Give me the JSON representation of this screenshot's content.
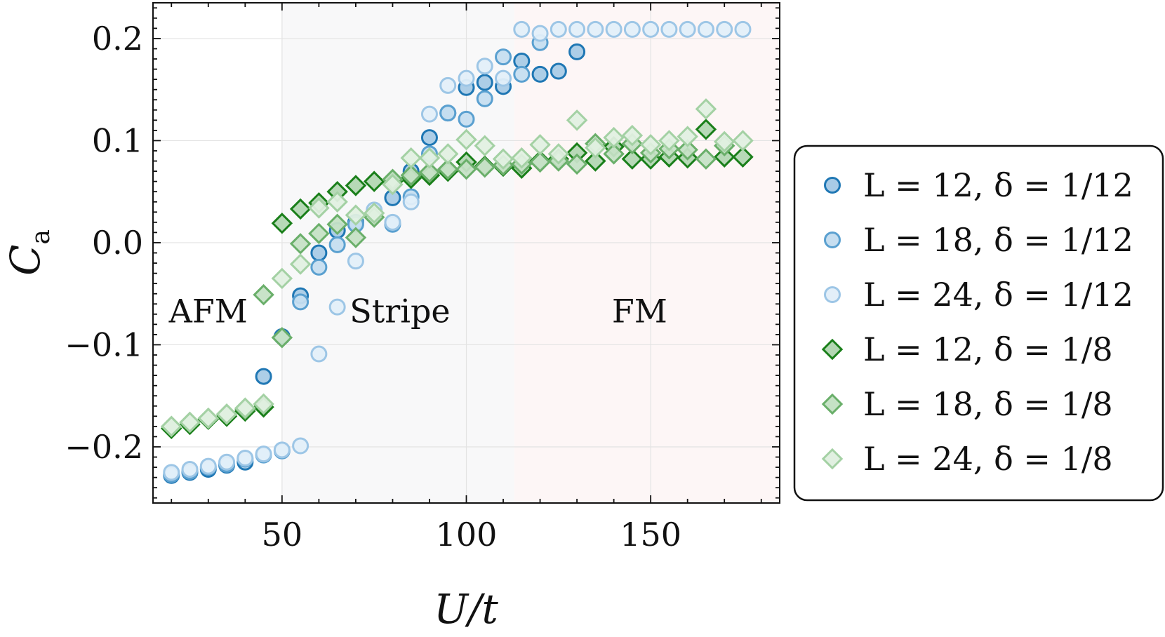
{
  "chart_data": {
    "type": "scatter",
    "title": "",
    "xlabel": "U/t",
    "ylabel": "C",
    "ylabel_subscript": "a",
    "xlim": [
      15,
      185
    ],
    "ylim": [
      -0.255,
      0.235
    ],
    "xticks": [
      50,
      100,
      150
    ],
    "xtick_labels": [
      "50",
      "100",
      "150"
    ],
    "yticks": [
      -0.2,
      -0.1,
      0.0,
      0.1,
      0.2
    ],
    "ytick_labels": [
      "−0.2",
      "−0.1",
      "0.0",
      "0.1",
      "0.2"
    ],
    "grid": true,
    "regions": [
      {
        "label": "AFM",
        "x0": 15,
        "x1": 50,
        "color": "#ffffff",
        "label_x": 30,
        "label_y": -0.078
      },
      {
        "label": "Stripe",
        "x0": 50,
        "x1": 113,
        "color": "#f8f8f9",
        "label_x": 82,
        "label_y": -0.078
      },
      {
        "label": "FM",
        "x0": 113,
        "x1": 185,
        "color": "#fdf6f6",
        "label_x": 147,
        "label_y": -0.078
      }
    ],
    "legend_position": "right, outside plot",
    "series": [
      {
        "name": "L = 12, δ = 1/12",
        "marker": "circle",
        "edge": "#1f77b4",
        "fill": "#a9cbe6",
        "x": [
          20,
          25,
          30,
          35,
          40,
          45,
          50,
          55,
          60,
          65,
          70,
          75,
          80,
          85,
          90,
          95,
          100,
          105,
          110,
          115,
          120,
          125,
          130
        ],
        "y": [
          -0.228,
          -0.225,
          -0.222,
          -0.218,
          -0.215,
          -0.131,
          -0.092,
          -0.052,
          -0.01,
          0.012,
          0.02,
          0.03,
          0.044,
          0.07,
          0.103,
          0.127,
          0.152,
          0.157,
          0.153,
          0.178,
          0.165,
          0.168,
          0.187
        ]
      },
      {
        "name": "L = 18, δ = 1/12",
        "marker": "circle",
        "edge": "#5aa0d0",
        "fill": "#c6def0",
        "x": [
          20,
          25,
          30,
          35,
          40,
          45,
          50,
          55,
          60,
          65,
          70,
          75,
          80,
          85,
          90,
          95,
          100,
          105,
          110,
          115,
          120
        ],
        "y": [
          -0.227,
          -0.224,
          -0.22,
          -0.217,
          -0.212,
          -0.208,
          -0.204,
          -0.058,
          -0.024,
          -0.002,
          0.018,
          0.028,
          0.018,
          0.045,
          0.087,
          0.127,
          0.121,
          0.141,
          0.182,
          0.165,
          0.196
        ]
      },
      {
        "name": "L = 24, δ = 1/12",
        "marker": "circle",
        "edge": "#9dc6e6",
        "fill": "#e3eff9",
        "x": [
          20,
          25,
          30,
          35,
          40,
          45,
          50,
          55,
          60,
          65,
          70,
          75,
          80,
          85,
          90,
          95,
          100,
          105,
          110,
          115,
          120,
          125,
          130,
          135,
          140,
          145,
          150,
          155,
          160,
          165,
          170,
          175
        ],
        "y": [
          -0.225,
          -0.222,
          -0.219,
          -0.215,
          -0.211,
          -0.207,
          -0.203,
          -0.199,
          -0.109,
          -0.063,
          -0.018,
          0.032,
          0.02,
          0.04,
          0.126,
          0.154,
          0.161,
          0.173,
          0.161,
          0.209,
          0.205,
          0.209,
          0.209,
          0.209,
          0.209,
          0.209,
          0.209,
          0.209,
          0.209,
          0.209,
          0.209,
          0.209
        ]
      },
      {
        "name": "L = 12, δ = 1/8",
        "marker": "diamond",
        "edge": "#1a7f1a",
        "fill": "#b3d7b3",
        "x": [
          20,
          25,
          30,
          35,
          40,
          45,
          50,
          55,
          60,
          65,
          70,
          75,
          80,
          85,
          90,
          95,
          100,
          105,
          110,
          115,
          120,
          125,
          130,
          135,
          140,
          145,
          150,
          155,
          160,
          165,
          170,
          175
        ],
        "y": [
          -0.182,
          -0.178,
          -0.173,
          -0.17,
          -0.165,
          -0.161,
          0.019,
          0.033,
          0.039,
          0.05,
          0.056,
          0.06,
          0.06,
          0.063,
          0.066,
          0.07,
          0.079,
          0.075,
          0.075,
          0.073,
          0.08,
          0.082,
          0.088,
          0.08,
          0.094,
          0.082,
          0.082,
          0.084,
          0.083,
          0.111,
          0.084,
          0.084
        ]
      },
      {
        "name": "L = 18, δ = 1/8",
        "marker": "diamond",
        "edge": "#6aaf6a",
        "fill": "#c6e2c6",
        "x": [
          20,
          25,
          30,
          35,
          40,
          45,
          50,
          55,
          60,
          65,
          70,
          75,
          80,
          85,
          90,
          95,
          100,
          105,
          110,
          115,
          120,
          125,
          130,
          135,
          140,
          145,
          150,
          155,
          160,
          165,
          170
        ],
        "y": [
          -0.18,
          -0.176,
          -0.172,
          -0.168,
          -0.163,
          -0.051,
          -0.093,
          -0.001,
          0.009,
          0.018,
          0.005,
          0.025,
          0.062,
          0.066,
          0.069,
          0.072,
          0.072,
          0.074,
          0.076,
          0.077,
          0.079,
          0.08,
          0.077,
          0.097,
          0.087,
          0.097,
          0.088,
          0.092,
          0.091,
          0.082,
          0.095
        ]
      },
      {
        "name": "L = 24, δ = 1/8",
        "marker": "diamond",
        "edge": "#a4d1a4",
        "fill": "#e1f0e1",
        "x": [
          20,
          25,
          30,
          35,
          40,
          45,
          50,
          55,
          60,
          65,
          70,
          75,
          80,
          85,
          90,
          95,
          100,
          105,
          110,
          115,
          120,
          125,
          130,
          135,
          140,
          145,
          150,
          155,
          160,
          165,
          170,
          175
        ],
        "y": [
          -0.18,
          -0.176,
          -0.172,
          -0.168,
          -0.162,
          -0.158,
          -0.035,
          -0.021,
          0.034,
          0.04,
          0.027,
          0.029,
          0.057,
          0.083,
          0.083,
          0.087,
          0.101,
          0.095,
          0.082,
          0.083,
          0.096,
          0.087,
          0.12,
          0.093,
          0.103,
          0.105,
          0.096,
          0.1,
          0.104,
          0.131,
          0.099,
          0.1
        ]
      }
    ]
  }
}
